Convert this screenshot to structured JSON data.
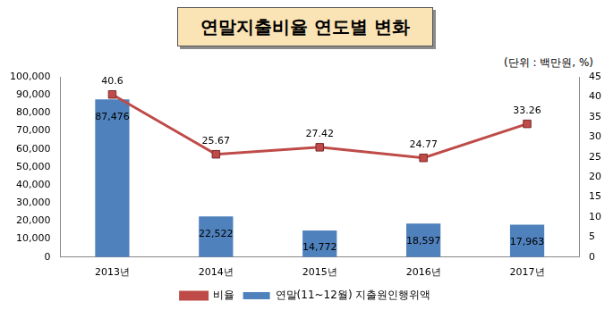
{
  "chart_data": {
    "type": "bar",
    "title": "연말지출비율 연도별 변화",
    "subtitle": "(단위 : 백만원, %)",
    "categories": [
      "2013년",
      "2014년",
      "2015년",
      "2016년",
      "2017년"
    ],
    "series": [
      {
        "name": "연말(11~12월) 지출원인행위액",
        "type": "bar",
        "color": "#4f81bd",
        "values": [
          87476,
          22522,
          14772,
          18597,
          17963
        ],
        "value_labels": [
          "87,476",
          "22,522",
          "14,772",
          "18,597",
          "17,963"
        ]
      },
      {
        "name": "비율",
        "type": "line",
        "color": "#be4b48",
        "marker": "square",
        "axis": "y2",
        "values": [
          40.6,
          25.67,
          27.42,
          24.77,
          33.26
        ]
      }
    ],
    "ylim": [
      0,
      100000
    ],
    "yticks": [
      0,
      {
        "value": 10000,
        "label": "10,000"
      },
      {
        "value": 20000,
        "label": "20,000"
      },
      {
        "value": 30000,
        "label": "30,000"
      },
      {
        "value": 40000,
        "label": "40,000"
      },
      {
        "value": 50000,
        "label": "50,000"
      },
      {
        "value": 60000,
        "label": "60,000"
      },
      {
        "value": 70000,
        "label": "70,000"
      },
      {
        "value": 80000,
        "label": "80,000"
      },
      {
        "value": 90000,
        "label": "90,000"
      },
      {
        "value": 100000,
        "label": "100,000"
      }
    ],
    "y2lim": [
      0,
      45
    ],
    "y2ticks": [
      0,
      5,
      10,
      15,
      20,
      25,
      30,
      35,
      40,
      45
    ],
    "grid": false,
    "legend": "bottom",
    "data_labels": true
  }
}
